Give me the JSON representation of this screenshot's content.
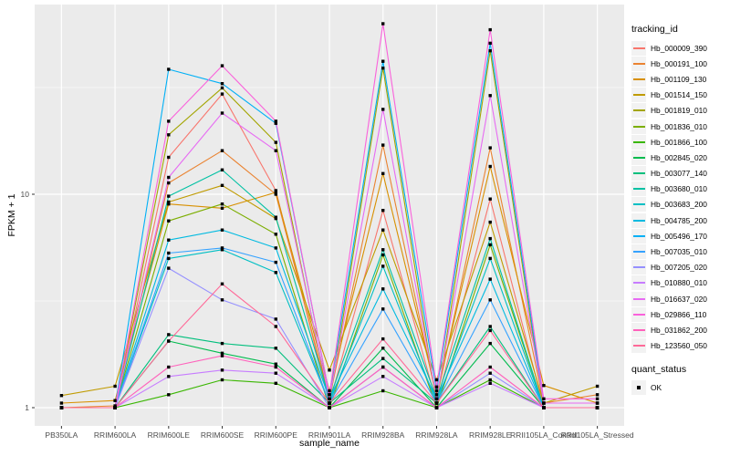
{
  "chart_data": {
    "type": "line",
    "xlabel": "sample_name",
    "ylabel": "FPKM + 1",
    "y_scale": "log10",
    "y_ticks": [
      1,
      10
    ],
    "y_minor_ticks": [
      3.1623,
      31.623
    ],
    "ylim": [
      0.83,
      77
    ],
    "grid": "on",
    "panel_bg": "#ebebeb",
    "grid_color": "#ffffff",
    "tick_color": "#333333",
    "point_shape": "black-square",
    "point_color": "#000000",
    "categories": [
      "PB350LA",
      "RRIM600LA",
      "RRIM600LE",
      "RRIM600SE",
      "RRIM600PE",
      "RRIM901LA",
      "RRIM928BA",
      "RRIM928LA",
      "RRIM928LE",
      "RRII105LA_Control",
      "RRII105LA_Stressed"
    ],
    "legend": {
      "title": "tracking_id",
      "position": "right"
    },
    "quant_legend": {
      "title": "quant_status",
      "items": [
        {
          "label": "OK"
        }
      ]
    },
    "series": [
      {
        "name": "Hb_000009_390",
        "color": "#F8766D",
        "values": [
          1.0,
          1.0,
          14.9,
          29.5,
          10.4,
          1.05,
          8.4,
          1.05,
          9.5,
          1.0,
          1.0
        ]
      },
      {
        "name": "Hb_000191_100",
        "color": "#EA8331",
        "values": [
          1.0,
          1.02,
          11.3,
          16.0,
          10.0,
          1.1,
          17.0,
          1.1,
          16.5,
          1.05,
          1.15
        ]
      },
      {
        "name": "Hb_001109_130",
        "color": "#D89000",
        "values": [
          1.05,
          1.08,
          9.0,
          8.6,
          10.2,
          1.2,
          12.5,
          1.15,
          13.5,
          1.27,
          1.05
        ]
      },
      {
        "name": "Hb_001514_150",
        "color": "#C09B00",
        "values": [
          1.14,
          1.26,
          9.2,
          11.0,
          7.7,
          1.5,
          6.8,
          1.35,
          7.4,
          1.05,
          1.26
        ]
      },
      {
        "name": "Hb_001819_010",
        "color": "#A3A500",
        "values": [
          1.0,
          1.0,
          19.0,
          31.5,
          17.5,
          1.05,
          39.0,
          1.05,
          47.0,
          1.0,
          1.0
        ]
      },
      {
        "name": "Hb_001836_010",
        "color": "#7CAE00",
        "values": [
          1.0,
          1.0,
          7.5,
          9.0,
          6.5,
          1.0,
          5.2,
          1.0,
          5.8,
          1.0,
          1.0
        ]
      },
      {
        "name": "Hb_001866_100",
        "color": "#39B600",
        "values": [
          1.0,
          1.0,
          1.15,
          1.35,
          1.3,
          1.0,
          1.2,
          1.0,
          1.35,
          1.0,
          1.0
        ]
      },
      {
        "name": "Hb_002845_020",
        "color": "#00BB4E",
        "values": [
          1.0,
          1.0,
          2.05,
          1.8,
          1.6,
          1.0,
          1.9,
          1.0,
          2.0,
          1.0,
          1.0
        ]
      },
      {
        "name": "Hb_003077_140",
        "color": "#00BF7D",
        "values": [
          1.0,
          1.0,
          2.2,
          2.0,
          1.9,
          1.05,
          1.7,
          1.05,
          2.4,
          1.0,
          1.0
        ]
      },
      {
        "name": "Hb_003680_010",
        "color": "#00C1A3",
        "values": [
          1.0,
          1.0,
          9.8,
          13.0,
          7.8,
          1.1,
          5.5,
          1.1,
          6.2,
          1.0,
          1.0
        ]
      },
      {
        "name": "Hb_003683_200",
        "color": "#00BFC4",
        "values": [
          1.0,
          1.0,
          5.0,
          5.5,
          4.3,
          1.05,
          4.6,
          1.05,
          5.0,
          1.0,
          1.0
        ]
      },
      {
        "name": "Hb_004785_200",
        "color": "#00BAE0",
        "values": [
          1.0,
          1.0,
          6.1,
          6.8,
          5.6,
          1.1,
          3.6,
          1.1,
          4.0,
          1.0,
          1.0
        ]
      },
      {
        "name": "Hb_005496_170",
        "color": "#00B0F6",
        "values": [
          1.0,
          1.0,
          38.5,
          33.0,
          21.5,
          1.15,
          42.0,
          1.2,
          51.0,
          1.05,
          1.05
        ]
      },
      {
        "name": "Hb_007035_010",
        "color": "#35A2FF",
        "values": [
          1.0,
          1.0,
          5.3,
          5.6,
          4.8,
          1.05,
          2.9,
          1.05,
          3.2,
          1.0,
          1.0
        ]
      },
      {
        "name": "Hb_007205_020",
        "color": "#9590FF",
        "values": [
          1.0,
          1.0,
          4.5,
          3.2,
          2.6,
          1.0,
          1.55,
          1.0,
          1.45,
          1.0,
          1.0
        ]
      },
      {
        "name": "Hb_010880_010",
        "color": "#C77CFF",
        "values": [
          1.0,
          1.0,
          1.4,
          1.5,
          1.45,
          1.0,
          1.4,
          1.0,
          1.3,
          1.0,
          1.0
        ]
      },
      {
        "name": "Hb_016637_020",
        "color": "#E76BF3",
        "values": [
          1.0,
          1.0,
          12.0,
          24.0,
          16.0,
          1.1,
          25.0,
          1.1,
          29.0,
          1.05,
          1.05
        ]
      },
      {
        "name": "Hb_029866_110",
        "color": "#FA62DB",
        "values": [
          1.0,
          1.0,
          22.0,
          40.0,
          22.0,
          1.15,
          63.0,
          1.25,
          59.0,
          1.1,
          1.1
        ]
      },
      {
        "name": "Hb_031862_200",
        "color": "#FF62BC",
        "values": [
          1.0,
          1.0,
          1.55,
          1.75,
          1.55,
          1.0,
          1.55,
          1.0,
          1.55,
          1.0,
          1.0
        ]
      },
      {
        "name": "Hb_123560_050",
        "color": "#FF6A98",
        "values": [
          1.0,
          1.0,
          2.05,
          3.8,
          2.4,
          1.05,
          2.1,
          1.05,
          2.3,
          1.0,
          1.0
        ]
      }
    ]
  }
}
